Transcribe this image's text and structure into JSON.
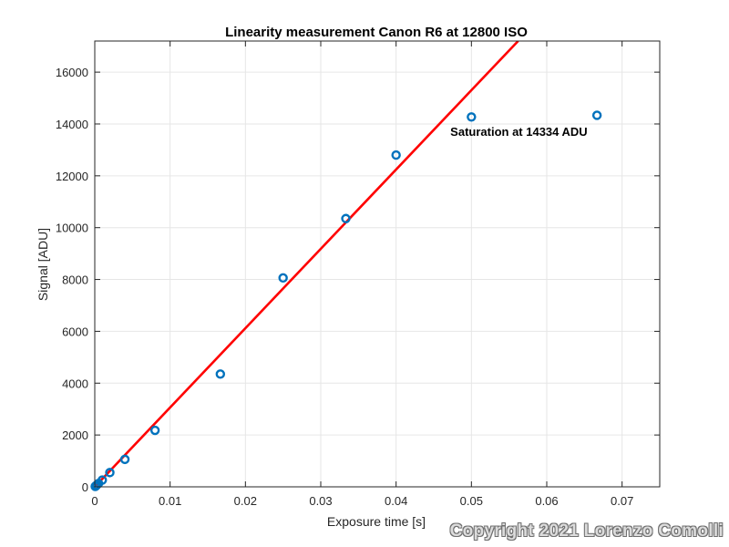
{
  "chart_data": {
    "type": "scatter",
    "title": "Linearity measurement Canon R6 at 12800 ISO",
    "xlabel": "Exposure time [s]",
    "ylabel": "Signal [ADU]",
    "xlim": [
      0,
      0.075
    ],
    "ylim": [
      0,
      17200
    ],
    "xticks": [
      "0",
      "0.01",
      "0.02",
      "0.03",
      "0.04",
      "0.05",
      "0.06",
      "0.07"
    ],
    "yticks": [
      "0",
      "2000",
      "4000",
      "6000",
      "8000",
      "10000",
      "12000",
      "14000",
      "16000"
    ],
    "grid": true,
    "series": [
      {
        "type": "scatter",
        "marker": "open-circle",
        "color": "#0072BD",
        "x": [
          6.25e-05,
          0.000125,
          0.00025,
          0.0005,
          0.001,
          0.002,
          0.004,
          0.008,
          0.01667,
          0.025,
          0.03333,
          0.04,
          0.05,
          0.06667
        ],
        "y": [
          15,
          30,
          65,
          130,
          260,
          550,
          1060,
          2180,
          4350,
          8060,
          10350,
          12800,
          14270,
          14334
        ]
      },
      {
        "type": "line",
        "color": "#FF0000",
        "x": [
          0,
          0.0562
        ],
        "y": [
          0,
          17200
        ]
      }
    ],
    "annotations": [
      {
        "text": "Saturation at 14334 ADU",
        "x": 0.0472,
        "y": 13550
      }
    ]
  },
  "watermark": "Copyright 2021 Lorenzo Comolli"
}
